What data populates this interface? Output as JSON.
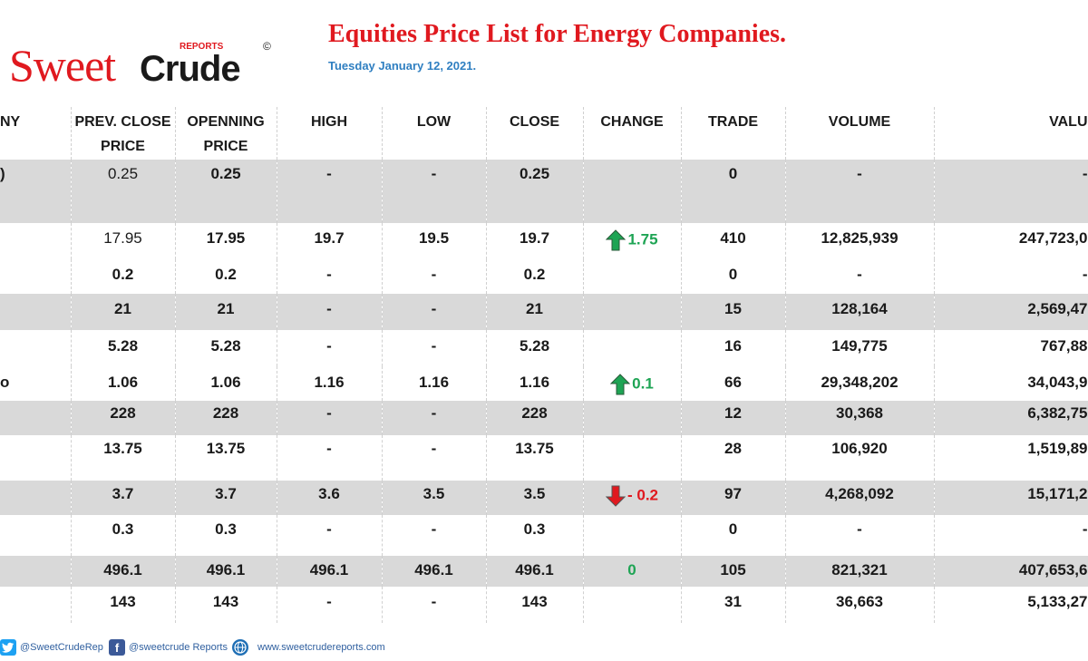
{
  "header": {
    "logo_text_1": "Sweet",
    "logo_text_2": "Crude",
    "logo_reports": "REPORTS",
    "logo_copyright": "©",
    "title": "Equities Price List for Energy Companies.",
    "date": "Tuesday January 12, 2021."
  },
  "table": {
    "columns": [
      {
        "line1": "NY",
        "line2": ""
      },
      {
        "line1": "PREV. CLOSE",
        "line2": "PRICE"
      },
      {
        "line1": "OPENNING",
        "line2": "PRICE"
      },
      {
        "line1": "HIGH",
        "line2": ""
      },
      {
        "line1": "LOW",
        "line2": ""
      },
      {
        "line1": "CLOSE",
        "line2": ""
      },
      {
        "line1": "CHANGE",
        "line2": ""
      },
      {
        "line1": "TRADE",
        "line2": ""
      },
      {
        "line1": "VOLUME",
        "line2": ""
      },
      {
        "line1": "VALU",
        "line2": ""
      }
    ],
    "rows": [
      {
        "company": ")",
        "prev": "0.25",
        "open": "0.25",
        "high": "-",
        "low": "-",
        "close": "0.25",
        "change": "",
        "dir": "",
        "trade": "0",
        "volume": "-",
        "value": "-"
      },
      {
        "company": "",
        "prev": "17.95",
        "open": "17.95",
        "high": "19.7",
        "low": "19.5",
        "close": "19.7",
        "change": "1.75",
        "dir": "up",
        "trade": "410",
        "volume": "12,825,939",
        "value": "247,723,0"
      },
      {
        "company": "",
        "prev": "0.2",
        "open": "0.2",
        "high": "-",
        "low": "-",
        "close": "0.2",
        "change": "",
        "dir": "",
        "trade": "0",
        "volume": "-",
        "value": "-"
      },
      {
        "company": "",
        "prev": "21",
        "open": "21",
        "high": "-",
        "low": "-",
        "close": "21",
        "change": "",
        "dir": "",
        "trade": "15",
        "volume": "128,164",
        "value": "2,569,47"
      },
      {
        "company": "",
        "prev": "5.28",
        "open": "5.28",
        "high": "-",
        "low": "-",
        "close": "5.28",
        "change": "",
        "dir": "",
        "trade": "16",
        "volume": "149,775",
        "value": "767,88"
      },
      {
        "company": "o",
        "prev": "1.06",
        "open": "1.06",
        "high": "1.16",
        "low": "1.16",
        "close": "1.16",
        "change": "0.1",
        "dir": "up",
        "trade": "66",
        "volume": "29,348,202",
        "value": "34,043,9"
      },
      {
        "company": "",
        "prev": "228",
        "open": "228",
        "high": "-",
        "low": "-",
        "close": "228",
        "change": "",
        "dir": "",
        "trade": "12",
        "volume": "30,368",
        "value": "6,382,75"
      },
      {
        "company": "",
        "prev": "13.75",
        "open": "13.75",
        "high": "-",
        "low": "-",
        "close": "13.75",
        "change": "",
        "dir": "",
        "trade": "28",
        "volume": "106,920",
        "value": "1,519,89"
      },
      {
        "company": "",
        "prev": "3.7",
        "open": "3.7",
        "high": "3.6",
        "low": "3.5",
        "close": "3.5",
        "change": "- 0.2",
        "dir": "down",
        "trade": "97",
        "volume": "4,268,092",
        "value": "15,171,2"
      },
      {
        "company": "",
        "prev": "0.3",
        "open": "0.3",
        "high": "-",
        "low": "-",
        "close": "0.3",
        "change": "",
        "dir": "",
        "trade": "0",
        "volume": "-",
        "value": "-"
      },
      {
        "company": "",
        "prev": "496.1",
        "open": "496.1",
        "high": "496.1",
        "low": "496.1",
        "close": "496.1",
        "change": "0",
        "dir": "flat",
        "trade": "105",
        "volume": "821,321",
        "value": "407,653,6"
      },
      {
        "company": "",
        "prev": "143",
        "open": "143",
        "high": "-",
        "low": "-",
        "close": "143",
        "change": "",
        "dir": "",
        "trade": "31",
        "volume": "36,663",
        "value": "5,133,27"
      }
    ]
  },
  "footer": {
    "twitter": "@SweetCrudeRep",
    "facebook": "@sweetcrude Reports",
    "website": "www.sweetcrudereports.com"
  },
  "colors": {
    "accent_red": "#e0191f",
    "date_blue": "#2f7fc1",
    "up_green": "#1ea454",
    "row_shade": "#d9d9d9"
  }
}
